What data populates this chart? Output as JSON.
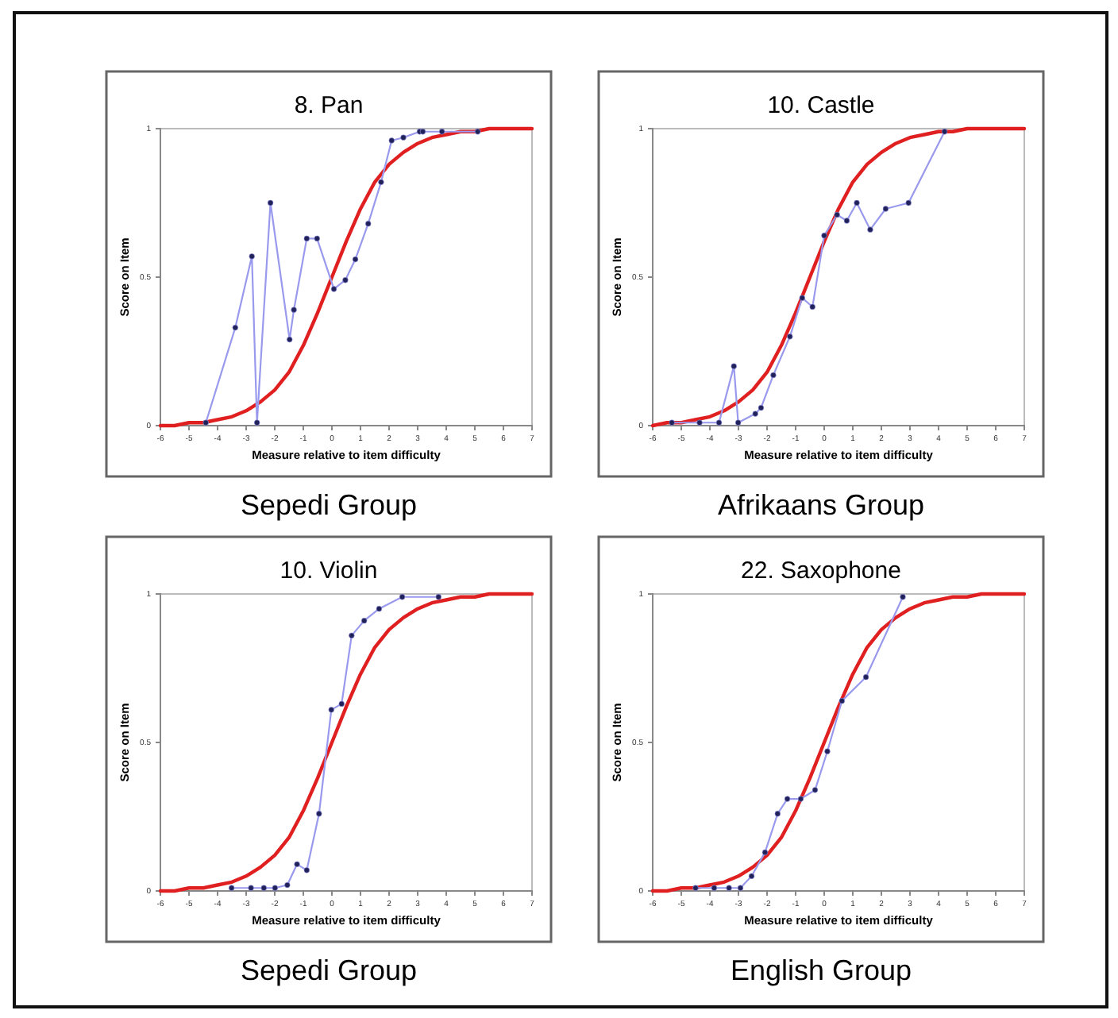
{
  "chart_data": [
    {
      "type": "line",
      "title": "8. Pan",
      "xlabel": "Measure relative to item difficulty",
      "ylabel": "Score on Item",
      "xlim": [
        -6,
        7
      ],
      "xticks": [
        -6,
        -5,
        -4,
        -3,
        -2,
        -1,
        0,
        1,
        2,
        3,
        4,
        5,
        6,
        7
      ],
      "ylim": [
        0,
        1
      ],
      "yticks": [
        0,
        0.5,
        1
      ],
      "annotations": [
        "Sepedi Group"
      ],
      "series": [
        {
          "color": "#e02020",
          "marker": "none",
          "x": [
            -6,
            -5.5,
            -5,
            -4.5,
            -4,
            -3.5,
            -3,
            -2.5,
            -2,
            -1.5,
            -1,
            -0.5,
            0,
            0.5,
            1,
            1.5,
            2,
            2.5,
            3,
            3.5,
            4,
            4.5,
            5,
            5.5,
            6,
            6.5,
            7
          ],
          "values": [
            0,
            0,
            0.01,
            0.01,
            0.02,
            0.03,
            0.05,
            0.08,
            0.12,
            0.18,
            0.27,
            0.38,
            0.5,
            0.62,
            0.73,
            0.82,
            0.88,
            0.92,
            0.95,
            0.97,
            0.98,
            0.99,
            0.99,
            1,
            1,
            1,
            1
          ]
        },
        {
          "color": "#9999ee",
          "marker": "circle",
          "x": [
            -4.41,
            -3.38,
            -2.8,
            -2.62,
            -2.15,
            -1.48,
            -1.33,
            -0.88,
            -0.52,
            0.07,
            0.47,
            0.82,
            1.27,
            1.72,
            2.09,
            2.5,
            3.07,
            3.18,
            3.85,
            5.1
          ],
          "values": [
            0.01,
            0.33,
            0.57,
            0.01,
            0.75,
            0.29,
            0.39,
            0.63,
            0.63,
            0.46,
            0.49,
            0.56,
            0.68,
            0.82,
            0.96,
            0.97,
            0.99,
            0.99,
            0.99,
            0.99
          ]
        }
      ]
    },
    {
      "type": "line",
      "title": "10. Castle",
      "xlabel": "Measure relative to item difficulty",
      "ylabel": "Score on Item",
      "xlim": [
        -6,
        7
      ],
      "xticks": [
        -6,
        -5,
        -4,
        -3,
        -2,
        -1,
        0,
        1,
        2,
        3,
        4,
        5,
        6,
        7
      ],
      "ylim": [
        0,
        1
      ],
      "yticks": [
        0,
        0.5,
        1
      ],
      "annotations": [
        "Afrikaans Group"
      ],
      "series": [
        {
          "color": "#e02020",
          "marker": "none",
          "x": [
            -6,
            -5.5,
            -5,
            -4.5,
            -4,
            -3.5,
            -3,
            -2.5,
            -2,
            -1.5,
            -1,
            -0.5,
            0,
            0.5,
            1,
            1.5,
            2,
            2.5,
            3,
            3.5,
            4,
            4.5,
            5,
            5.5,
            6,
            6.5,
            7
          ],
          "values": [
            0,
            0.01,
            0.01,
            0.02,
            0.03,
            0.05,
            0.08,
            0.12,
            0.18,
            0.27,
            0.38,
            0.5,
            0.62,
            0.73,
            0.82,
            0.88,
            0.92,
            0.95,
            0.97,
            0.98,
            0.99,
            0.99,
            1,
            1,
            1,
            1,
            1
          ]
        },
        {
          "color": "#9999ee",
          "marker": "circle",
          "x": [
            -5.33,
            -4.36,
            -3.68,
            -3.16,
            -3.01,
            -2.41,
            -2.21,
            -1.78,
            -1.2,
            -0.77,
            -0.41,
            0,
            0.45,
            0.79,
            1.14,
            1.61,
            2.15,
            2.95,
            4.21
          ],
          "values": [
            0.01,
            0.01,
            0.01,
            0.2,
            0.01,
            0.04,
            0.06,
            0.17,
            0.3,
            0.43,
            0.4,
            0.64,
            0.71,
            0.69,
            0.75,
            0.66,
            0.73,
            0.75,
            0.99
          ]
        }
      ]
    },
    {
      "type": "line",
      "title": "10. Violin",
      "xlabel": "Measure relative to item difficulty",
      "ylabel": "Score on Item",
      "xlim": [
        -6,
        7
      ],
      "xticks": [
        -6,
        -5,
        -4,
        -3,
        -2,
        -1,
        0,
        1,
        2,
        3,
        4,
        5,
        6,
        7
      ],
      "ylim": [
        0,
        1
      ],
      "yticks": [
        0,
        0.5,
        1
      ],
      "annotations": [
        "Sepedi Group"
      ],
      "series": [
        {
          "color": "#e02020",
          "marker": "none",
          "x": [
            -6,
            -5.5,
            -5,
            -4.5,
            -4,
            -3.5,
            -3,
            -2.5,
            -2,
            -1.5,
            -1,
            -0.5,
            0,
            0.5,
            1,
            1.5,
            2,
            2.5,
            3,
            3.5,
            4,
            4.5,
            5,
            5.5,
            6,
            6.5,
            7
          ],
          "values": [
            0,
            0,
            0.01,
            0.01,
            0.02,
            0.03,
            0.05,
            0.08,
            0.12,
            0.18,
            0.27,
            0.38,
            0.5,
            0.62,
            0.73,
            0.82,
            0.88,
            0.92,
            0.95,
            0.97,
            0.98,
            0.99,
            0.99,
            1,
            1,
            1,
            1
          ]
        },
        {
          "color": "#9999ee",
          "marker": "circle",
          "x": [
            -3.51,
            -2.83,
            -2.38,
            -1.99,
            -1.56,
            -1.22,
            -0.88,
            -0.45,
            -0.02,
            0.34,
            0.69,
            1.13,
            1.65,
            2.46,
            3.73
          ],
          "values": [
            0.01,
            0.01,
            0.01,
            0.01,
            0.02,
            0.09,
            0.07,
            0.26,
            0.61,
            0.63,
            0.86,
            0.91,
            0.95,
            0.99,
            0.99
          ]
        }
      ]
    },
    {
      "type": "line",
      "title": "22. Saxophone",
      "xlabel": "Measure relative to item difficulty",
      "ylabel": "Score on Item",
      "xlim": [
        -6,
        7
      ],
      "xticks": [
        -6,
        -5,
        -4,
        -3,
        -2,
        -1,
        0,
        1,
        2,
        3,
        4,
        5,
        6,
        7
      ],
      "ylim": [
        0,
        1
      ],
      "yticks": [
        0,
        0.5,
        1
      ],
      "annotations": [
        "English Group"
      ],
      "series": [
        {
          "color": "#e02020",
          "marker": "none",
          "x": [
            -6,
            -5.5,
            -5,
            -4.5,
            -4,
            -3.5,
            -3,
            -2.5,
            -2,
            -1.5,
            -1,
            -0.5,
            0,
            0.5,
            1,
            1.5,
            2,
            2.5,
            3,
            3.5,
            4,
            4.5,
            5,
            5.5,
            6,
            6.5,
            7
          ],
          "values": [
            0,
            0,
            0.01,
            0.01,
            0.02,
            0.03,
            0.05,
            0.08,
            0.12,
            0.18,
            0.27,
            0.38,
            0.5,
            0.62,
            0.73,
            0.82,
            0.88,
            0.92,
            0.95,
            0.97,
            0.98,
            0.99,
            0.99,
            1,
            1,
            1,
            1
          ]
        },
        {
          "color": "#9999ee",
          "marker": "circle",
          "x": [
            -4.5,
            -3.85,
            -3.33,
            -2.93,
            -2.54,
            -2.07,
            -1.63,
            -1.29,
            -0.82,
            -0.32,
            0.11,
            0.62,
            1.46,
            2.75
          ],
          "values": [
            0.01,
            0.01,
            0.01,
            0.01,
            0.05,
            0.13,
            0.26,
            0.31,
            0.31,
            0.34,
            0.47,
            0.64,
            0.72,
            0.99
          ]
        }
      ]
    }
  ]
}
